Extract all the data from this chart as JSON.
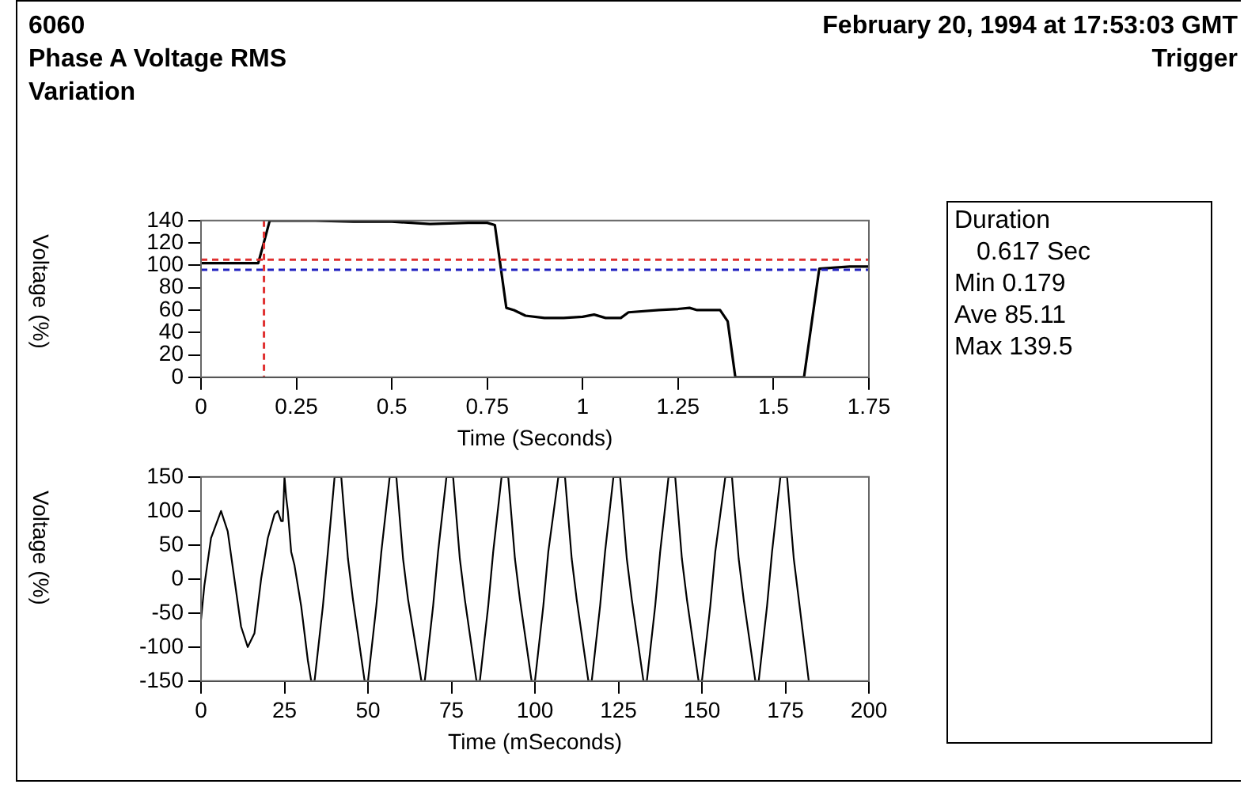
{
  "chart_data": [
    {
      "type": "line",
      "title": "6060",
      "subtitle": "Phase A Voltage RMS Variation",
      "annotations": [
        "February 20, 1994 at 17:53:03 GMT",
        "Trigger"
      ],
      "xlabel": "Time (Seconds)",
      "ylabel": "Voltage (%)",
      "marker": "none",
      "grid": false,
      "xlim": [
        0,
        1.75
      ],
      "xticks": [
        0,
        0.25,
        0.5,
        0.75,
        1,
        1.25,
        1.5,
        1.75
      ],
      "ylim": [
        0,
        140
      ],
      "yticks": [
        0,
        20,
        40,
        60,
        80,
        100,
        120,
        140
      ],
      "ref_lines": [
        {
          "axis": "y",
          "value": 105,
          "color": "#e03030",
          "line_style": "dashed"
        },
        {
          "axis": "y",
          "value": 96,
          "color": "#2020c0",
          "line_style": "dashed"
        },
        {
          "axis": "x",
          "value": 0.165,
          "color": "#e03030",
          "line_style": "dashed"
        }
      ],
      "series": [
        {
          "color": "#000000",
          "x": [
            0,
            0.15,
            0.17,
            0.18,
            0.3,
            0.4,
            0.5,
            0.6,
            0.7,
            0.75,
            0.77,
            0.8,
            0.82,
            0.85,
            0.9,
            0.95,
            1.0,
            1.03,
            1.06,
            1.1,
            1.12,
            1.2,
            1.25,
            1.28,
            1.3,
            1.36,
            1.38,
            1.4,
            1.58,
            1.62,
            1.7,
            1.75
          ],
          "values": [
            102,
            102,
            127,
            140,
            140,
            139,
            139,
            137,
            138,
            138,
            136,
            62,
            60,
            55,
            53,
            53,
            54,
            56,
            53,
            53,
            58,
            60,
            61,
            62,
            60,
            60,
            50,
            0,
            0,
            97,
            99,
            99
          ]
        }
      ]
    },
    {
      "type": "line",
      "xlabel": "Time (mSeconds)",
      "ylabel": "Voltage (%)",
      "marker": "none",
      "grid": false,
      "xlim": [
        0,
        200
      ],
      "xticks": [
        0,
        25,
        50,
        75,
        100,
        125,
        150,
        175,
        200
      ],
      "ylim": [
        -150,
        150
      ],
      "yticks": [
        -150,
        -100,
        -50,
        0,
        50,
        100,
        150
      ],
      "series": [
        {
          "color": "#000000",
          "x": [
            0,
            1,
            3,
            6,
            8,
            10,
            12,
            14,
            16,
            18,
            20,
            22,
            23,
            24,
            24.5,
            25,
            25.5,
            26,
            27,
            28,
            29,
            30,
            32,
            33,
            34,
            36.5,
            38,
            40,
            42,
            44,
            45.5,
            49,
            50,
            52.5,
            54,
            56.5,
            58.5,
            60.5,
            62,
            66,
            67,
            69.5,
            71,
            73.5,
            75.5,
            77.5,
            79,
            82.5,
            83.5,
            86,
            87.5,
            90,
            92,
            94,
            95.5,
            99,
            100,
            102.5,
            104,
            107,
            109,
            111,
            112.5,
            116,
            117,
            119.5,
            121,
            123.5,
            125.5,
            127.5,
            129,
            132.5,
            133.5,
            136,
            137.5,
            140,
            142,
            144,
            145.5,
            149,
            150,
            152.5,
            154,
            157,
            159,
            161,
            162.5,
            166,
            167,
            169.5,
            171,
            173.5,
            175.5,
            177.5,
            179,
            182
          ],
          "values": [
            -60,
            -10,
            60,
            100,
            70,
            0,
            -70,
            -100,
            -80,
            0,
            60,
            95,
            100,
            85,
            85,
            150,
            120,
            100,
            40,
            20,
            -10,
            -40,
            -120,
            -150,
            -150,
            -40,
            40,
            150,
            150,
            30,
            -30,
            -150,
            -150,
            -40,
            40,
            150,
            150,
            30,
            -30,
            -150,
            -150,
            -40,
            40,
            150,
            150,
            30,
            -30,
            -150,
            -150,
            -40,
            40,
            150,
            150,
            30,
            -30,
            -150,
            -150,
            -40,
            40,
            150,
            150,
            30,
            -30,
            -150,
            -150,
            -40,
            40,
            150,
            150,
            30,
            -30,
            -150,
            -150,
            -40,
            40,
            150,
            150,
            30,
            -30,
            -150,
            -150,
            -40,
            40,
            150,
            150,
            30,
            -30,
            -150,
            -150,
            -40,
            40,
            150,
            150,
            30,
            -30,
            -150
          ]
        }
      ]
    },
    {
      "type": "other",
      "annotations": [
        "Duration",
        "0.617 Sec",
        "Min 0.179",
        "Ave 85.11",
        "Max 139.5"
      ]
    }
  ]
}
